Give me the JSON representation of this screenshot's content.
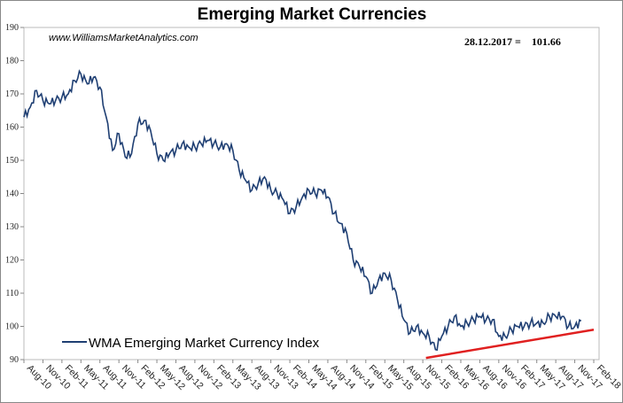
{
  "chart_data": {
    "type": "line",
    "title": "Emerging Market Currencies",
    "watermark": "www.WilliamsMarketAnalytics.com",
    "annotation": "28.12.2017 =    101.66",
    "ylim": [
      90,
      190
    ],
    "yticks": [
      90,
      100,
      110,
      120,
      130,
      140,
      150,
      160,
      170,
      180,
      190
    ],
    "xticks": [
      "Aug-10",
      "Nov-10",
      "Feb-11",
      "May-11",
      "Aug-11",
      "Nov-11",
      "Feb-12",
      "May-12",
      "Aug-12",
      "Nov-12",
      "Feb-13",
      "May-13",
      "Aug-13",
      "Nov-13",
      "Feb-14",
      "May-14",
      "Aug-14",
      "Nov-14",
      "Feb-15",
      "May-15",
      "Aug-15",
      "Nov-15",
      "Feb-16",
      "May-16",
      "Aug-16",
      "Nov-16",
      "Feb-17",
      "May-17",
      "Aug-17",
      "Nov-17",
      "Feb-18"
    ],
    "x_unit": "months since Aug-10",
    "xlim": [
      0,
      90
    ],
    "series": [
      {
        "name": "WMA Emerging Market Currency Index",
        "color": "#1f3f73",
        "values": [
          163,
          166,
          171,
          168,
          167,
          168,
          169,
          170,
          174,
          176,
          173,
          175,
          172,
          163,
          153,
          158,
          151,
          152,
          161,
          162,
          159,
          152,
          150,
          152,
          153,
          155,
          154,
          154,
          155,
          156,
          155,
          154,
          155,
          153,
          147,
          144,
          141,
          143,
          145,
          141,
          140,
          138,
          134,
          136,
          139,
          141,
          140,
          141,
          139,
          134,
          131,
          128,
          120,
          118,
          115,
          110,
          114,
          116,
          114,
          108,
          102,
          98,
          100,
          98,
          97,
          93,
          97,
          100,
          103,
          100,
          101,
          102,
          103,
          102,
          102,
          97,
          97,
          99,
          100,
          100,
          101,
          101,
          101,
          103,
          103,
          103,
          100,
          100,
          101.66
        ]
      },
      {
        "name": "Trendline",
        "color": "#e02020",
        "x": [
          63.5,
          90
        ],
        "values": [
          90.5,
          99
        ]
      }
    ],
    "legend": {
      "placement": "bottom-left",
      "label": "WMA Emerging Market Currency Index"
    }
  }
}
